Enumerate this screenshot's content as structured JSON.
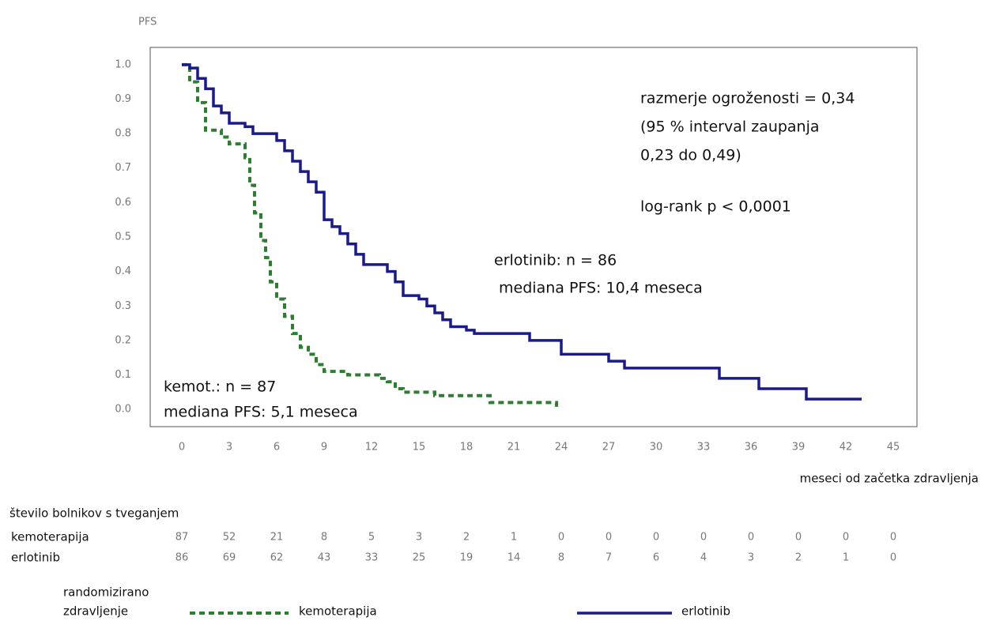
{
  "chart_data": {
    "type": "line",
    "step": true,
    "y_label": "PFS",
    "x_label": "meseci od začetka zdravljenja",
    "xlim": [
      -2,
      46.5
    ],
    "ylim": [
      -0.05,
      1.05
    ],
    "xticks": [
      0,
      3,
      6,
      9,
      12,
      15,
      18,
      21,
      24,
      27,
      30,
      33,
      36,
      39,
      42,
      45
    ],
    "yticks": [
      {
        "value": 0,
        "label": "0.0"
      },
      0.1,
      0.2,
      0.3,
      0.4,
      0.5,
      0.6,
      0.7,
      0.8,
      0.9,
      {
        "value": 1,
        "label": "1.0"
      }
    ],
    "series": [
      {
        "name": "kemoterapija",
        "color": "#2e7d32",
        "dashed": true,
        "x": [
          0,
          0.5,
          1,
          1.5,
          2.5,
          3,
          4,
          4.3,
          4.6,
          5,
          5.3,
          5.6,
          6,
          6.5,
          7,
          7.5,
          8,
          8.5,
          9,
          10.5,
          12.5,
          13,
          13.5,
          14,
          16,
          19.5,
          23.5,
          23.7
        ],
        "values": [
          1.0,
          0.95,
          0.89,
          0.81,
          0.79,
          0.77,
          0.73,
          0.65,
          0.57,
          0.49,
          0.44,
          0.37,
          0.32,
          0.27,
          0.22,
          0.18,
          0.16,
          0.13,
          0.11,
          0.1,
          0.09,
          0.08,
          0.06,
          0.05,
          0.04,
          0.02,
          0.02,
          0.0
        ]
      },
      {
        "name": "erlotinib",
        "color": "#1a1a8c",
        "dashed": false,
        "x": [
          0,
          0.5,
          1,
          1.5,
          2,
          2.5,
          3,
          4,
          4.5,
          6,
          6.5,
          7,
          7.5,
          8,
          8.5,
          9,
          9.5,
          10,
          10.5,
          11,
          11.5,
          13,
          13.5,
          14,
          15,
          15.5,
          16,
          16.5,
          17,
          18,
          18.5,
          22,
          24,
          27,
          28,
          34,
          36.5,
          39.5,
          43
        ],
        "values": [
          1.0,
          0.99,
          0.96,
          0.93,
          0.88,
          0.86,
          0.83,
          0.82,
          0.8,
          0.78,
          0.75,
          0.72,
          0.69,
          0.66,
          0.63,
          0.55,
          0.53,
          0.51,
          0.48,
          0.45,
          0.42,
          0.4,
          0.37,
          0.33,
          0.32,
          0.3,
          0.28,
          0.26,
          0.24,
          0.23,
          0.22,
          0.2,
          0.16,
          0.14,
          0.12,
          0.09,
          0.06,
          0.03,
          0.03
        ]
      }
    ],
    "annotations": [
      {
        "lines": [
          "razmerje ogroženosti = 0,34",
          "(95 % interval zaupanja",
          "0,23 do 0,49)"
        ]
      },
      {
        "lines": [
          "log-rank p < 0,0001"
        ]
      },
      {
        "lines": [
          "erlotinib: n = 86",
          " mediana PFS: 10,4 meseca"
        ]
      },
      {
        "lines": [
          "kemot.: n = 87",
          "mediana PFS: 5,1 meseca"
        ]
      }
    ],
    "risk_table": {
      "title": "število bolnikov s tveganjem",
      "rows": [
        {
          "name": "kemoterapija",
          "values": [
            87,
            52,
            21,
            8,
            5,
            3,
            2,
            1,
            0,
            0,
            0,
            0,
            0,
            0,
            0,
            0
          ]
        },
        {
          "name": "erlotinib",
          "values": [
            86,
            69,
            62,
            43,
            33,
            25,
            19,
            14,
            8,
            7,
            6,
            4,
            3,
            2,
            1,
            0
          ]
        }
      ]
    },
    "legend_title": [
      "randomizirano",
      "zdravljenje"
    ]
  }
}
